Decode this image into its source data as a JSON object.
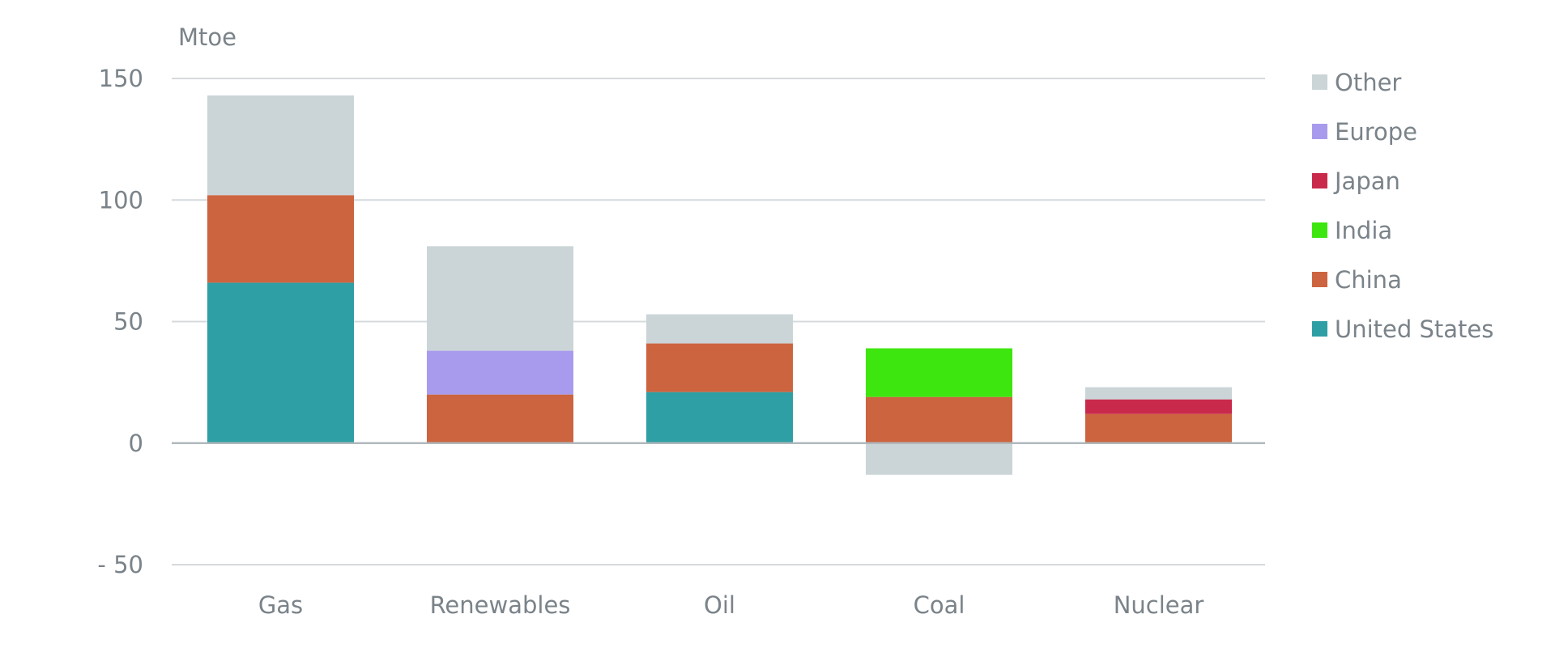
{
  "chart_data": {
    "type": "bar",
    "stacked": true,
    "title": "",
    "xlabel": "",
    "ylabel": "Mtoe",
    "ylim": [
      -50,
      150
    ],
    "yticks": [
      {
        "value": 150,
        "label": "150"
      },
      {
        "value": 100,
        "label": "100"
      },
      {
        "value": 50,
        "label": "50"
      },
      {
        "value": 0,
        "label": "0"
      },
      {
        "value": -50,
        "label": "- 50"
      }
    ],
    "grid": true,
    "legend_position": "right",
    "categories": [
      "Gas",
      "Renewables",
      "Oil",
      "Coal",
      "Nuclear"
    ],
    "series": [
      {
        "name": "United States",
        "color": "#2e9fa4",
        "values": [
          66,
          0,
          21,
          0,
          0
        ]
      },
      {
        "name": "China",
        "color": "#cc6440",
        "values": [
          36,
          20,
          20,
          19,
          12
        ]
      },
      {
        "name": "India",
        "color": "#3de60e",
        "values": [
          0,
          0,
          0,
          20,
          0
        ]
      },
      {
        "name": "Japan",
        "color": "#c92a4c",
        "values": [
          0,
          0,
          0,
          0,
          6
        ]
      },
      {
        "name": "Europe",
        "color": "#a89bee",
        "values": [
          0,
          18,
          0,
          0,
          0
        ]
      },
      {
        "name": "Other",
        "color": "#cbd5d7",
        "values": [
          41,
          43,
          12,
          -13,
          5
        ]
      }
    ],
    "legend_order": [
      "Other",
      "Europe",
      "Japan",
      "India",
      "China",
      "United States"
    ],
    "colors": {
      "axis": "#b0b8bc",
      "grid": "#d5dadd",
      "text": "#7a8389"
    }
  }
}
